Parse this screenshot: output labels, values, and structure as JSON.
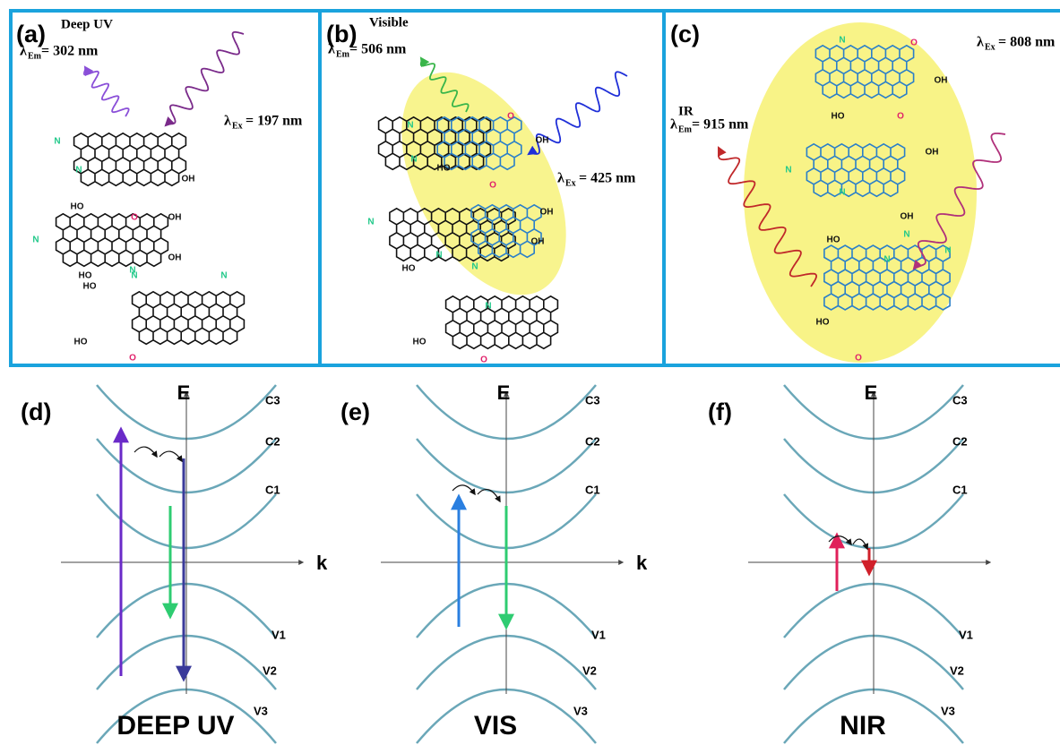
{
  "top_panels": [
    {
      "label": "(a)",
      "band": "Deep UV",
      "emission": {
        "symbol": "λ",
        "sub": "Em",
        "value": "= 302 nm"
      },
      "excitation": {
        "symbol": "λ",
        "sub": "Ex",
        "value": "= 197 nm"
      },
      "atoms": [
        "N",
        "OH",
        "N",
        "HO",
        "O",
        "N",
        "OH",
        "OH",
        "N",
        "HO",
        "N",
        "HO",
        "N",
        "HO",
        "O"
      ]
    },
    {
      "label": "(b)",
      "band": "Visible",
      "emission": {
        "symbol": "λ",
        "sub": "Em",
        "value": "= 506 nm"
      },
      "excitation": {
        "symbol": "λ",
        "sub": "Ex",
        "value": "= 425 nm"
      },
      "atoms": [
        "N",
        "N",
        "O",
        "OH",
        "N",
        "HO",
        "O",
        "N",
        "OH",
        "OH",
        "N",
        "HO",
        "N",
        "HO",
        "O"
      ]
    },
    {
      "label": "(c)",
      "band": "IR",
      "emission": {
        "symbol": "λ",
        "sub": "Em",
        "value": "= 915 nm"
      },
      "excitation": {
        "symbol": "λ",
        "sub": "Ex",
        "value": "= 808 nm"
      },
      "atoms": [
        "N",
        "O",
        "OH",
        "HO",
        "O",
        "N",
        "OH",
        "N",
        "OH",
        "HO",
        "N",
        "N",
        "N",
        "HO",
        "O"
      ]
    }
  ],
  "bottom_panels": [
    {
      "label": "(d)",
      "energy_axis": "E",
      "k_axis": "k",
      "conduction_bands": [
        "C3",
        "C2",
        "C1"
      ],
      "valence_bands": [
        "V1",
        "V2",
        "V3"
      ],
      "title": "DEEP UV"
    },
    {
      "label": "(e)",
      "energy_axis": "E",
      "k_axis": "k",
      "conduction_bands": [
        "C3",
        "C2",
        "C1"
      ],
      "valence_bands": [
        "V1",
        "V2",
        "V3"
      ],
      "title": "VIS"
    },
    {
      "label": "(f)",
      "energy_axis": "E",
      "conduction_bands": [
        "C3",
        "C2",
        "C1"
      ],
      "valence_bands": [
        "V1",
        "V2",
        "V3"
      ],
      "title": "NIR"
    }
  ]
}
